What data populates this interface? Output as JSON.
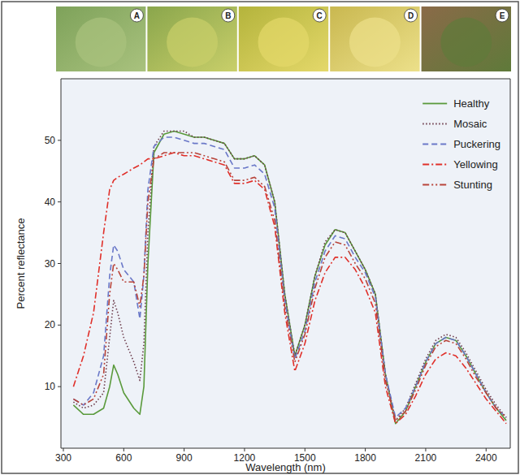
{
  "chart_data": {
    "type": "line",
    "xlabel": "Wavelength (nm)",
    "ylabel": "Percent reflectance",
    "annotations": [
      "A",
      "B",
      "C",
      "D",
      "E"
    ],
    "x": [
      350,
      400,
      450,
      500,
      530,
      550,
      570,
      600,
      650,
      680,
      700,
      720,
      750,
      800,
      850,
      900,
      950,
      1000,
      1050,
      1100,
      1150,
      1200,
      1250,
      1300,
      1350,
      1400,
      1450,
      1500,
      1550,
      1600,
      1650,
      1700,
      1750,
      1800,
      1850,
      1900,
      1950,
      2000,
      2050,
      2100,
      2150,
      2200,
      2250,
      2300,
      2350,
      2400,
      2450,
      2500
    ],
    "series": [
      {
        "name": "Healthy",
        "color": "#5a9a3c",
        "line_style": "solid",
        "values": [
          7,
          5.5,
          5.5,
          6.5,
          10,
          13.5,
          12,
          9,
          6.5,
          5.5,
          10,
          30,
          48,
          51,
          51.5,
          51,
          50.5,
          50.5,
          50,
          49.5,
          47,
          47,
          47.5,
          46,
          40,
          25,
          15,
          20,
          28,
          33,
          35.5,
          35,
          32,
          29,
          25,
          12,
          4,
          6,
          10,
          14,
          17,
          18,
          17.5,
          15,
          12,
          9,
          6.5,
          4.5
        ]
      },
      {
        "name": "Mosaic",
        "color": "#6b3a4a",
        "line_style": "dotted",
        "values": [
          7.5,
          6.5,
          7,
          9,
          18,
          24,
          22,
          18,
          14,
          11,
          17,
          35,
          49,
          51.5,
          51.5,
          51.5,
          50.5,
          50.5,
          50,
          49.5,
          47,
          47,
          47.5,
          46,
          40,
          25,
          15,
          20,
          28,
          33.5,
          35.5,
          35,
          32,
          29,
          25,
          12,
          4.5,
          6.5,
          10.5,
          14.5,
          17.5,
          18.5,
          18,
          15.5,
          12.5,
          9.5,
          7,
          5
        ]
      },
      {
        "name": "Puckering",
        "color": "#6a78c8",
        "line_style": "dashed",
        "values": [
          8,
          7,
          9,
          15,
          28,
          33,
          32,
          29,
          27,
          21,
          28,
          42,
          49,
          50.5,
          50.5,
          50,
          49.5,
          49.5,
          49,
          48.5,
          45.5,
          45.5,
          46,
          44.5,
          39,
          24,
          14.5,
          19,
          27,
          32,
          34.5,
          34,
          31,
          28.5,
          24.5,
          12,
          5,
          6.5,
          10,
          14,
          17,
          18,
          17.5,
          15,
          12,
          9,
          6.5,
          5
        ]
      },
      {
        "name": "Yellowing",
        "color": "#e0302a",
        "line_style": "dashdot",
        "values": [
          10,
          15,
          22,
          35,
          42,
          43.5,
          44,
          44.5,
          45.5,
          46,
          46.5,
          47,
          47,
          47.5,
          48,
          47.5,
          47.5,
          47,
          46.5,
          46,
          43,
          43,
          43.5,
          42,
          36,
          22,
          12.5,
          17,
          24,
          28.5,
          31,
          31,
          29,
          26,
          22,
          10,
          4,
          5.5,
          8.5,
          12,
          14.5,
          15.5,
          15,
          13,
          10.5,
          8,
          6,
          4
        ]
      },
      {
        "name": "Stunting",
        "color": "#b8443a",
        "line_style": "dashdotdot",
        "values": [
          8,
          7,
          8,
          12,
          25,
          30,
          29,
          27,
          27,
          23,
          28,
          40,
          47,
          48,
          48,
          48,
          48,
          47.5,
          47,
          46.5,
          43.5,
          43.5,
          44,
          42.5,
          37,
          23,
          14,
          18.5,
          26,
          31,
          33.5,
          33,
          30,
          27.5,
          23.5,
          11,
          4.5,
          6,
          9.5,
          13.5,
          16.5,
          17.5,
          17,
          14.5,
          11.5,
          9,
          6.5,
          5
        ]
      }
    ],
    "xlim": [
      288,
      2520
    ],
    "ylim": [
      0,
      60
    ],
    "xticks": [
      300,
      600,
      900,
      1200,
      1500,
      1800,
      2100,
      2400
    ],
    "yticks": [
      10,
      20,
      30,
      40,
      50
    ],
    "grid": false,
    "legend": "upper right"
  }
}
